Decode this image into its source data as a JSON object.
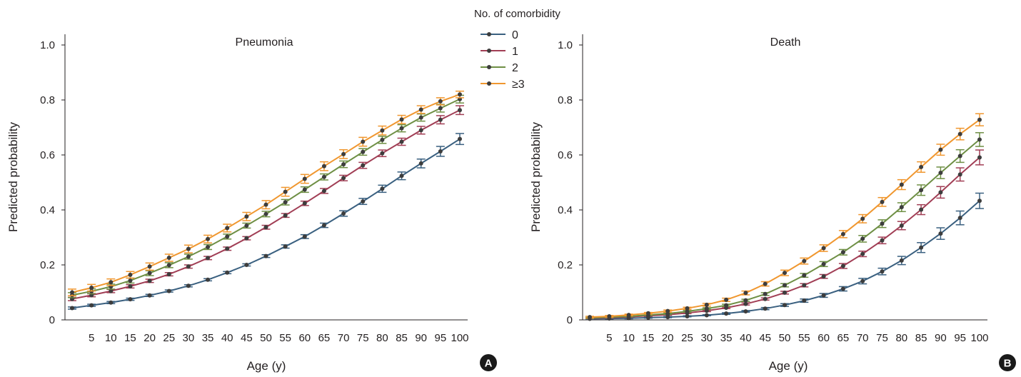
{
  "legend": {
    "title": "No. of comorbidity",
    "entries": [
      "0",
      "1",
      "2",
      "≥3"
    ]
  },
  "colors": {
    "series": [
      "#3a6080",
      "#a13e55",
      "#6e8f44",
      "#f0972f"
    ],
    "marker": "#3d3d3d",
    "axis": "#231f20",
    "badge": "#1a1a1a"
  },
  "chart_data": [
    {
      "type": "line",
      "panel": "A",
      "title": "Pneumonia",
      "xlabel": "Age (y)",
      "ylabel": "Predicted probability",
      "x": [
        0,
        5,
        10,
        15,
        20,
        25,
        30,
        35,
        40,
        45,
        50,
        55,
        60,
        65,
        70,
        75,
        80,
        85,
        90,
        95,
        100
      ],
      "x_ticks": [
        5,
        10,
        15,
        20,
        25,
        30,
        35,
        40,
        45,
        50,
        55,
        60,
        65,
        70,
        75,
        80,
        85,
        90,
        95,
        100
      ],
      "ylim": [
        0,
        1.0
      ],
      "y_ticks": [
        0,
        0.2,
        0.4,
        0.6,
        0.8,
        1.0
      ],
      "y_tick_labels": [
        "0",
        "0.2",
        "0.4",
        "0.6",
        "0.8",
        "1.0"
      ],
      "error_bars": true,
      "grid": false,
      "legend_position": "top-right",
      "series": [
        {
          "name": "0",
          "values": [
            0.043,
            0.053,
            0.063,
            0.075,
            0.089,
            0.105,
            0.124,
            0.146,
            0.172,
            0.2,
            0.232,
            0.267,
            0.303,
            0.344,
            0.387,
            0.431,
            0.477,
            0.524,
            0.569,
            0.613,
            0.658
          ],
          "err": [
            0.004,
            0.004,
            0.004,
            0.004,
            0.004,
            0.004,
            0.004,
            0.004,
            0.004,
            0.004,
            0.005,
            0.006,
            0.007,
            0.008,
            0.01,
            0.011,
            0.013,
            0.014,
            0.016,
            0.018,
            0.02
          ]
        },
        {
          "name": "1",
          "values": [
            0.076,
            0.09,
            0.105,
            0.122,
            0.142,
            0.166,
            0.194,
            0.225,
            0.259,
            0.297,
            0.337,
            0.38,
            0.424,
            0.469,
            0.516,
            0.562,
            0.606,
            0.648,
            0.69,
            0.728,
            0.763
          ],
          "err": [
            0.006,
            0.006,
            0.006,
            0.006,
            0.006,
            0.006,
            0.006,
            0.006,
            0.006,
            0.006,
            0.007,
            0.007,
            0.008,
            0.009,
            0.01,
            0.011,
            0.012,
            0.013,
            0.014,
            0.015,
            0.016
          ]
        },
        {
          "name": "2",
          "values": [
            0.09,
            0.104,
            0.121,
            0.143,
            0.17,
            0.199,
            0.23,
            0.265,
            0.303,
            0.343,
            0.385,
            0.428,
            0.474,
            0.52,
            0.566,
            0.611,
            0.655,
            0.697,
            0.736,
            0.77,
            0.803
          ],
          "err": [
            0.009,
            0.009,
            0.009,
            0.009,
            0.009,
            0.009,
            0.009,
            0.009,
            0.009,
            0.009,
            0.01,
            0.01,
            0.01,
            0.011,
            0.012,
            0.012,
            0.013,
            0.013,
            0.013,
            0.014,
            0.014
          ]
        },
        {
          "name": "≥3",
          "values": [
            0.1,
            0.117,
            0.137,
            0.164,
            0.194,
            0.226,
            0.258,
            0.294,
            0.334,
            0.376,
            0.419,
            0.466,
            0.513,
            0.559,
            0.603,
            0.648,
            0.689,
            0.729,
            0.765,
            0.795,
            0.82
          ],
          "err": [
            0.012,
            0.012,
            0.012,
            0.012,
            0.013,
            0.013,
            0.014,
            0.014,
            0.014,
            0.015,
            0.015,
            0.016,
            0.016,
            0.016,
            0.016,
            0.016,
            0.016,
            0.015,
            0.014,
            0.013,
            0.012
          ]
        }
      ]
    },
    {
      "type": "line",
      "panel": "B",
      "title": "Death",
      "xlabel": "Age (y)",
      "ylabel": "Predicted probability",
      "x": [
        0,
        5,
        10,
        15,
        20,
        25,
        30,
        35,
        40,
        45,
        50,
        55,
        60,
        65,
        70,
        75,
        80,
        85,
        90,
        95,
        100
      ],
      "x_ticks": [
        5,
        10,
        15,
        20,
        25,
        30,
        35,
        40,
        45,
        50,
        55,
        60,
        65,
        70,
        75,
        80,
        85,
        90,
        95,
        100
      ],
      "ylim": [
        0,
        1.0
      ],
      "y_ticks": [
        0,
        0.2,
        0.4,
        0.6,
        0.8,
        1.0
      ],
      "y_tick_labels": [
        "0",
        "0.2",
        "0.4",
        "0.6",
        "0.8",
        "1.0"
      ],
      "error_bars": true,
      "grid": false,
      "series": [
        {
          "name": "0",
          "values": [
            0.004,
            0.005,
            0.006,
            0.008,
            0.01,
            0.013,
            0.017,
            0.023,
            0.031,
            0.041,
            0.054,
            0.07,
            0.089,
            0.113,
            0.141,
            0.176,
            0.216,
            0.263,
            0.314,
            0.371,
            0.433
          ],
          "err": [
            0.002,
            0.002,
            0.002,
            0.002,
            0.002,
            0.002,
            0.002,
            0.003,
            0.003,
            0.004,
            0.005,
            0.006,
            0.007,
            0.008,
            0.01,
            0.012,
            0.015,
            0.018,
            0.021,
            0.025,
            0.028
          ]
        },
        {
          "name": "1",
          "values": [
            0.006,
            0.008,
            0.011,
            0.015,
            0.019,
            0.025,
            0.033,
            0.044,
            0.058,
            0.076,
            0.099,
            0.126,
            0.158,
            0.196,
            0.24,
            0.289,
            0.343,
            0.401,
            0.464,
            0.529,
            0.591
          ],
          "err": [
            0.002,
            0.002,
            0.002,
            0.002,
            0.002,
            0.002,
            0.003,
            0.003,
            0.004,
            0.004,
            0.005,
            0.006,
            0.007,
            0.009,
            0.01,
            0.012,
            0.015,
            0.018,
            0.021,
            0.024,
            0.027
          ]
        },
        {
          "name": "2",
          "values": [
            0.007,
            0.01,
            0.013,
            0.018,
            0.023,
            0.031,
            0.041,
            0.053,
            0.071,
            0.094,
            0.126,
            0.162,
            0.203,
            0.246,
            0.295,
            0.35,
            0.41,
            0.472,
            0.535,
            0.596,
            0.656
          ],
          "err": [
            0.002,
            0.002,
            0.002,
            0.002,
            0.003,
            0.003,
            0.003,
            0.004,
            0.004,
            0.005,
            0.006,
            0.007,
            0.009,
            0.01,
            0.012,
            0.014,
            0.016,
            0.019,
            0.021,
            0.023,
            0.025
          ]
        },
        {
          "name": "≥3",
          "values": [
            0.01,
            0.013,
            0.018,
            0.024,
            0.032,
            0.042,
            0.055,
            0.073,
            0.098,
            0.131,
            0.171,
            0.214,
            0.261,
            0.312,
            0.368,
            0.429,
            0.492,
            0.556,
            0.619,
            0.676,
            0.728
          ],
          "err": [
            0.003,
            0.003,
            0.003,
            0.003,
            0.004,
            0.004,
            0.005,
            0.006,
            0.007,
            0.008,
            0.01,
            0.011,
            0.012,
            0.013,
            0.015,
            0.016,
            0.018,
            0.019,
            0.02,
            0.021,
            0.022
          ]
        }
      ]
    }
  ]
}
